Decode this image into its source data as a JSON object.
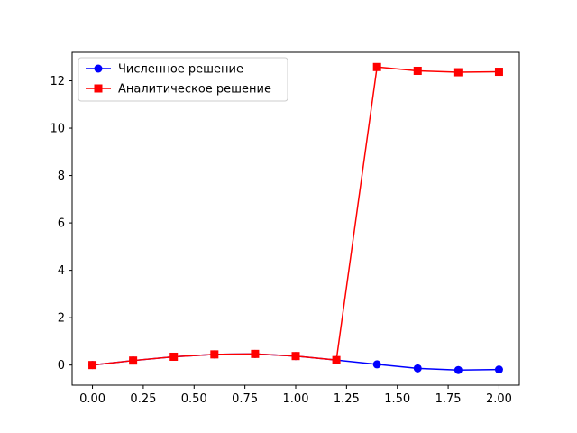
{
  "chart_data": {
    "type": "line",
    "title": "",
    "xlabel": "",
    "ylabel": "",
    "xlim": [
      -0.1,
      2.1
    ],
    "ylim": [
      -0.85,
      13.2
    ],
    "x_ticks": [
      0.0,
      0.25,
      0.5,
      0.75,
      1.0,
      1.25,
      1.5,
      1.75,
      2.0
    ],
    "x_tick_labels": [
      "0.00",
      "0.25",
      "0.50",
      "0.75",
      "1.00",
      "1.25",
      "1.50",
      "1.75",
      "2.00"
    ],
    "y_ticks": [
      0,
      2,
      4,
      6,
      8,
      10,
      12
    ],
    "y_tick_labels": [
      "0",
      "2",
      "4",
      "6",
      "8",
      "10",
      "12"
    ],
    "grid": false,
    "legend_position": "top-left",
    "x": [
      0.0,
      0.2,
      0.4,
      0.6,
      0.8,
      1.0,
      1.2,
      1.4,
      1.6,
      1.8,
      2.0
    ],
    "series": [
      {
        "name": "Численное решение",
        "color": "#0000ff",
        "marker": "circle",
        "values": [
          0.0,
          0.19,
          0.35,
          0.45,
          0.47,
          0.38,
          0.21,
          0.03,
          -0.14,
          -0.21,
          -0.19
        ]
      },
      {
        "name": "Аналитическое решение",
        "color": "#ff0000",
        "marker": "square",
        "values": [
          0.0,
          0.19,
          0.35,
          0.45,
          0.47,
          0.38,
          0.21,
          12.58,
          12.42,
          12.36,
          12.38
        ]
      }
    ]
  }
}
